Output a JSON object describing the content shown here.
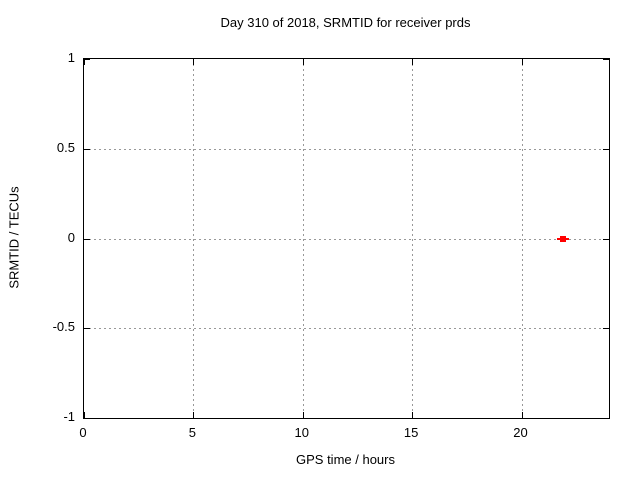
{
  "chart_data": {
    "type": "scatter",
    "title": "Day 310 of 2018, SRMTID for receiver prds",
    "xlabel": "GPS time / hours",
    "ylabel": "SRMTID / TECUs",
    "xlim": [
      0,
      24
    ],
    "ylim": [
      -1,
      1
    ],
    "xticks": [
      0,
      5,
      10,
      15,
      20
    ],
    "yticks": [
      -1,
      -0.5,
      0,
      0.5,
      1
    ],
    "grid": "dotted",
    "grid_color": "#989898",
    "axis_color": "#000000",
    "background_color": "#ffffff",
    "legend": "none",
    "series": [
      {
        "name": "SRMTID",
        "color": "#ff0000",
        "marker": "square-with-horizontal-bar",
        "points": [
          {
            "x": 21.9,
            "y": 0.0,
            "xbar_halfwidth": 0.27
          }
        ]
      }
    ]
  }
}
